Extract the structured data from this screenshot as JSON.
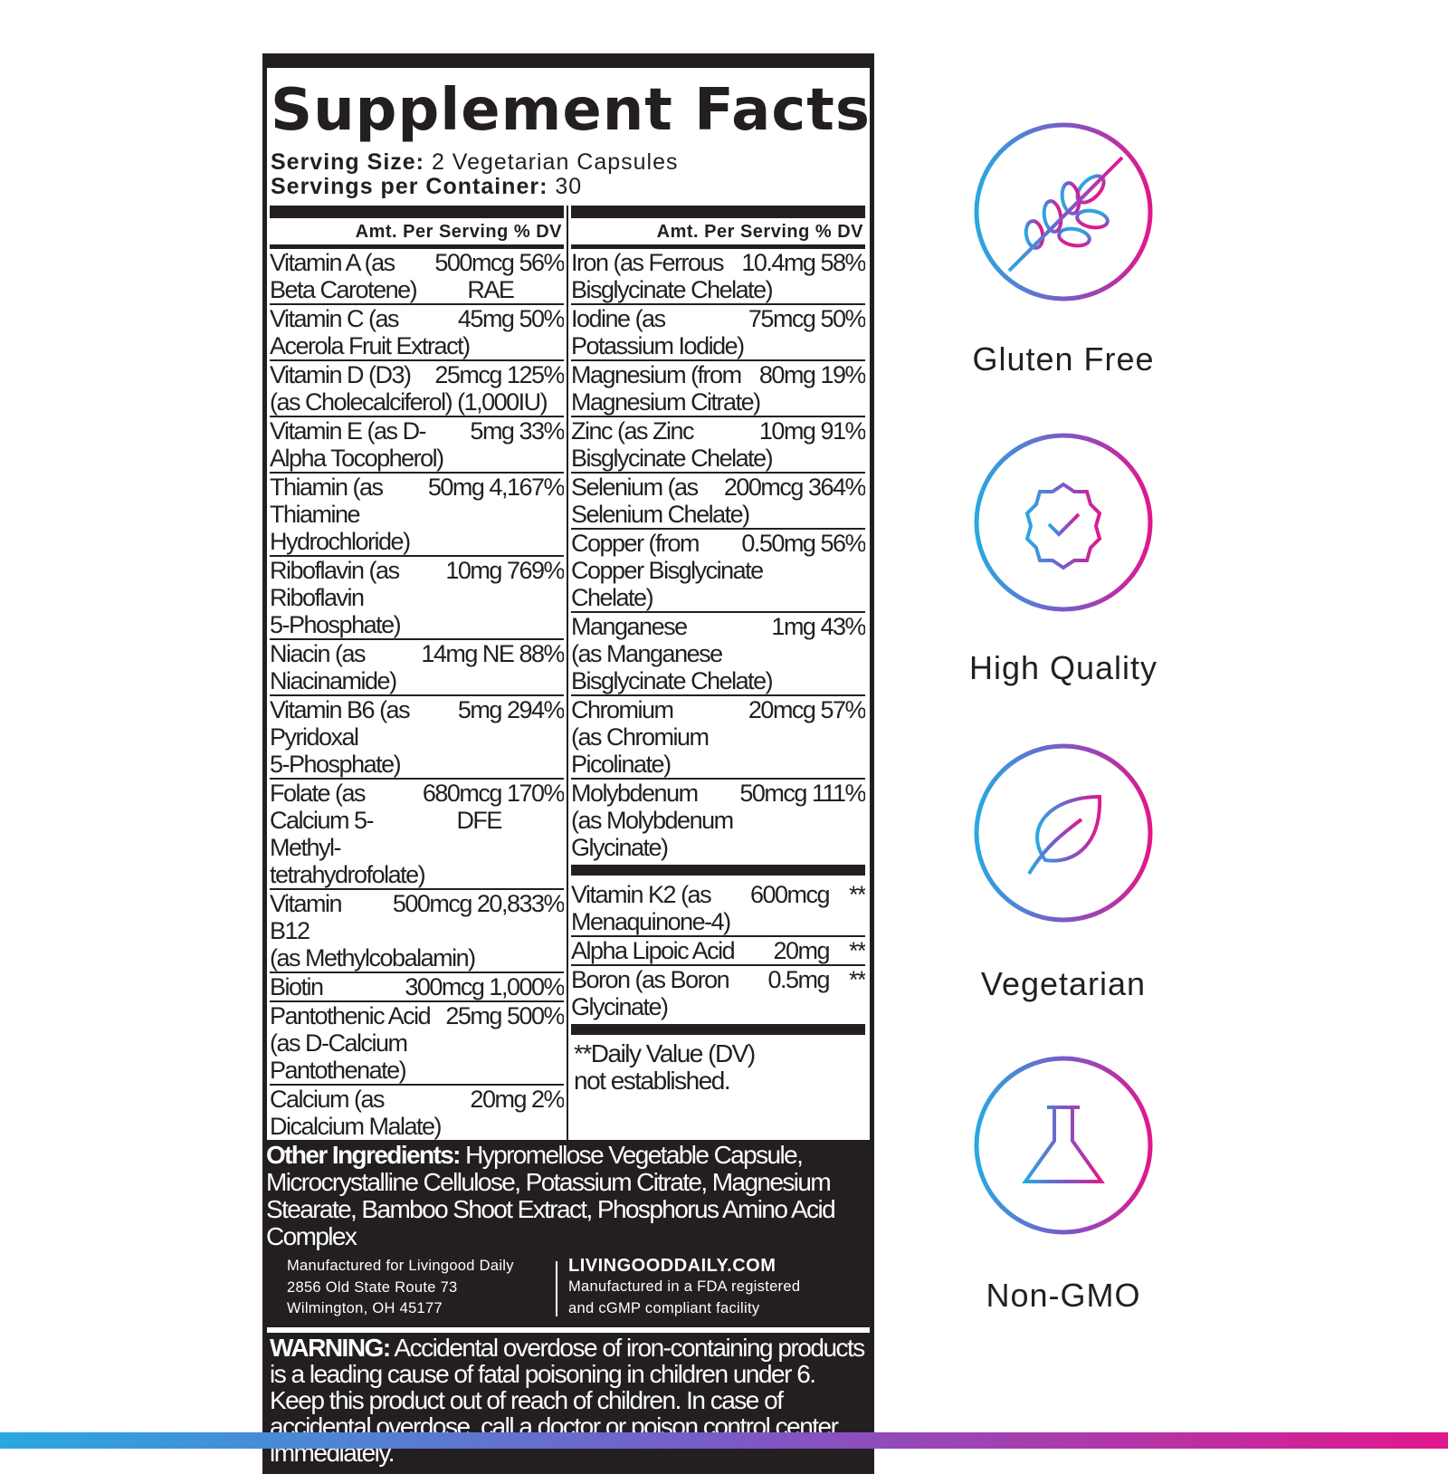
{
  "title": "Supplement Facts",
  "serving_size_label": "Serving Size:",
  "serving_size": "2 Vegetarian Capsules",
  "servings_label": "Servings per Container:",
  "servings": "30",
  "column_header": "Amt. Per Serving % DV",
  "left_rows": [
    {
      "name": "Vitamin A (as\nBeta Carotene)",
      "amount": "500mcg\nRAE",
      "dv": "56%"
    },
    {
      "name": "Vitamin C (as\nAcerola Fruit Extract)",
      "amount": "45mg",
      "dv": "50%"
    },
    {
      "name": "Vitamin D (D3)\n(as Cholecalciferol) (1,000IU)",
      "amount": "25mcg",
      "dv": "125%"
    },
    {
      "name": "Vitamin E (as D-\nAlpha Tocopherol)",
      "amount": "5mg",
      "dv": "33%"
    },
    {
      "name": "Thiamin (as\nThiamine\nHydrochloride)",
      "amount": "50mg",
      "dv": "4,167%"
    },
    {
      "name": "Riboflavin (as\nRiboflavin\n5-Phosphate)",
      "amount": "10mg",
      "dv": "769%"
    },
    {
      "name": "Niacin (as\nNiacinamide)",
      "amount": "14mg NE",
      "dv": "88%"
    },
    {
      "name": "Vitamin B6 (as\nPyridoxal\n5-Phosphate)",
      "amount": "5mg",
      "dv": "294%"
    },
    {
      "name": "Folate (as\nCalcium 5-Methyl-\ntetrahydrofolate)",
      "amount": "680mcg\nDFE",
      "dv": "170%"
    },
    {
      "name": "Vitamin B12\n(as Methylcobalamin)",
      "amount": "500mcg",
      "dv": "20,833%"
    },
    {
      "name": "Biotin",
      "amount": "300mcg",
      "dv": "1,000%"
    },
    {
      "name": "Pantothenic Acid\n(as D-Calcium\nPantothenate)",
      "amount": "25mg",
      "dv": "500%"
    },
    {
      "name": "Calcium (as\nDicalcium Malate)",
      "amount": "20mg",
      "dv": "2%"
    }
  ],
  "right_rows": [
    {
      "name": "Iron (as Ferrous\nBisglycinate Chelate)",
      "amount": "10.4mg",
      "dv": "58%"
    },
    {
      "name": "Iodine (as\nPotassium Iodide)",
      "amount": "75mcg",
      "dv": "50%"
    },
    {
      "name": "Magnesium (from\nMagnesium Citrate)",
      "amount": "80mg",
      "dv": "19%"
    },
    {
      "name": "Zinc (as Zinc\nBisglycinate Chelate)",
      "amount": "10mg",
      "dv": "91%"
    },
    {
      "name": "Selenium (as\nSelenium Chelate)",
      "amount": "200mcg",
      "dv": "364%"
    },
    {
      "name": "Copper (from\nCopper Bisglycinate\nChelate)",
      "amount": "0.50mg",
      "dv": "56%"
    },
    {
      "name": "Manganese\n(as Manganese\nBisglycinate Chelate)",
      "amount": "1mg",
      "dv": "43%"
    },
    {
      "name": "Chromium\n(as Chromium\nPicolinate)",
      "amount": "20mcg",
      "dv": "57%"
    },
    {
      "name": "Molybdenum\n(as Molybdenum\nGlycinate)",
      "amount": "50mcg",
      "dv": "111%"
    }
  ],
  "right_rows_2": [
    {
      "name": "Vitamin K2 (as\nMenaquinone-4)",
      "amount": "600mcg",
      "dv": "**"
    },
    {
      "name": "Alpha Lipoic Acid",
      "amount": "20mg",
      "dv": "**"
    },
    {
      "name": "Boron (as Boron\nGlycinate)",
      "amount": "0.5mg",
      "dv": "**"
    }
  ],
  "footnote": "**Daily Value (DV)\nnot established.",
  "other_label": "Other Ingredients:",
  "other_text": " Hypromellose Vegetable Capsule, Microcrystalline Cellulose, Potassium Citrate, Magnesium Stearate, Bamboo Shoot Extract, Phosphorus Amino Acid Complex",
  "manufacturer": "Manufactured for Livingood Daily\n2856 Old State Route 73\nWilmington, OH 45177",
  "website": "LIVINGOODDAILY.COM",
  "facility": "Manufactured in a FDA registered\nand cGMP compliant facility",
  "warning_label": "WARNING:",
  "warning_text": " Accidental overdose of iron-containing products is a leading cause of fatal poisoning in children under 6. Keep this product out of reach of children. In case of accidental overdose, call a doctor or poison control center immediately.",
  "badges": [
    {
      "label": "Gluten Free",
      "icon": "wheat-crossed-icon"
    },
    {
      "label": "High Quality",
      "icon": "check-seal-icon"
    },
    {
      "label": "Vegetarian",
      "icon": "leaf-icon"
    },
    {
      "label": "Non-GMO",
      "icon": "flask-icon"
    }
  ],
  "colors": {
    "ink": "#231f20",
    "gradient_start": "#29a8e0",
    "gradient_mid": "#7a5ac8",
    "gradient_end": "#e0188c"
  }
}
